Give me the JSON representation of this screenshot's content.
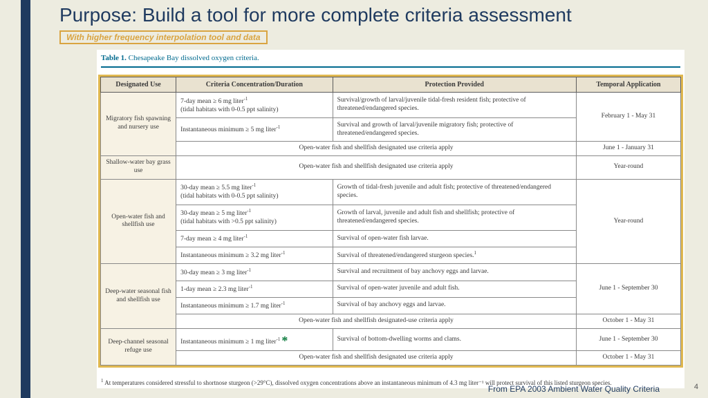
{
  "colors": {
    "page_bg": "#edece0",
    "stripe": "#1f3a5f",
    "title": "#1f3a5f",
    "accent_gold": "#d9a441",
    "frame_gold": "#e0b850",
    "teal": "#006a8e",
    "table_header_bg": "#e9e2d0",
    "row_label_bg": "#f7f2e4"
  },
  "title": "Purpose: Build a tool for more complete criteria assessment",
  "subtitle": "With higher frequency interpolation tool and data",
  "table_caption_bold": "Table 1.",
  "table_caption_rest": " Chesapeake Bay dissolved oxygen criteria.",
  "headers": {
    "c1": "Designated Use",
    "c2": "Criteria Concentration/Duration",
    "c3": "Protection Provided",
    "c4": "Temporal Application"
  },
  "rows": {
    "mig": {
      "du": "Migratory fish spawning and nursery use",
      "r1c2a": "7-day mean ≥ 6 mg liter",
      "r1c2b": "(tidal habitats with 0-0.5 ppt salinity)",
      "r1c3": "Survival/growth of larval/juvenile tidal-fresh resident fish; protective of threatened/endangered species.",
      "r2c2": "Instantaneous minimum ≥ 5 mg liter",
      "r2c3": "Survival and growth of larval/juvenile migratory fish; protective of threatened/endangered species.",
      "ta1": "February 1 - May 31",
      "span": "Open-water fish and shellfish designated use criteria apply",
      "ta2": "June 1 - January 31"
    },
    "shallow": {
      "du": "Shallow-water bay grass use",
      "span": "Open-water fish and shellfish designated use criteria apply",
      "ta": "Year-round"
    },
    "open": {
      "du": "Open-water fish and shellfish use",
      "r1c2a": "30-day mean ≥  5.5 mg liter",
      "r1c2b": "(tidal habitats with 0-0.5 ppt salinity)",
      "r1c3": "Growth of tidal-fresh juvenile and adult fish; protective of threatened/endangered species.",
      "r2c2a": "30-day mean ≥  5 mg liter",
      "r2c2b": "(tidal habitats with >0.5 ppt salinity)",
      "r2c3": "Growth of larval, juvenile and adult fish and shellfish; protective of threatened/endangered species.",
      "r3c2": "7-day mean ≥ 4 mg liter",
      "r3c3": "Survival of open-water fish larvae.",
      "r4c2": "Instantaneous minimum ≥ 3.2 mg liter",
      "r4c3": "Survival of threatened/endangered sturgeon species.",
      "ta": "Year-round"
    },
    "deep": {
      "du": "Deep-water seasonal fish and shellfish use",
      "r1c2": "30-day mean ≥ 3 mg liter",
      "r1c3": "Survival and recruitment of bay anchovy eggs and larvae.",
      "r2c2": "1-day mean ≥ 2.3 mg liter",
      "r2c3": "Survival of open-water juvenile and adult fish.",
      "r3c2": "Instantaneous minimum ≥ 1.7 mg liter",
      "r3c3": "Survival of bay anchovy eggs and larvae.",
      "ta1": "June 1 - September 30",
      "span": "Open-water fish and shellfish designated-use criteria apply",
      "ta2": "October 1 - May 31"
    },
    "channel": {
      "du": "Deep-channel seasonal refuge use",
      "r1c2": "Instantaneous minimum ≥ 1 mg liter",
      "r1c3": "Survival of bottom-dwelling worms and clams.",
      "ta1": "June 1 - September 30",
      "span": "Open-water fish and shellfish designated use criteria apply",
      "ta2": "October 1 - May 31"
    }
  },
  "sup_neg1": "-1",
  "sup_1": "1",
  "footnote": "At temperatures considered stressful to shortnose sturgeon (>29°C), dissolved oxygen concentrations above an instantaneous minimum of 4.3 mg liter⁻¹ will protect survival of this listed sturgeon species.",
  "source": "From EPA 2003 Ambient Water Quality Criteria",
  "page_number": "4",
  "star": "*"
}
